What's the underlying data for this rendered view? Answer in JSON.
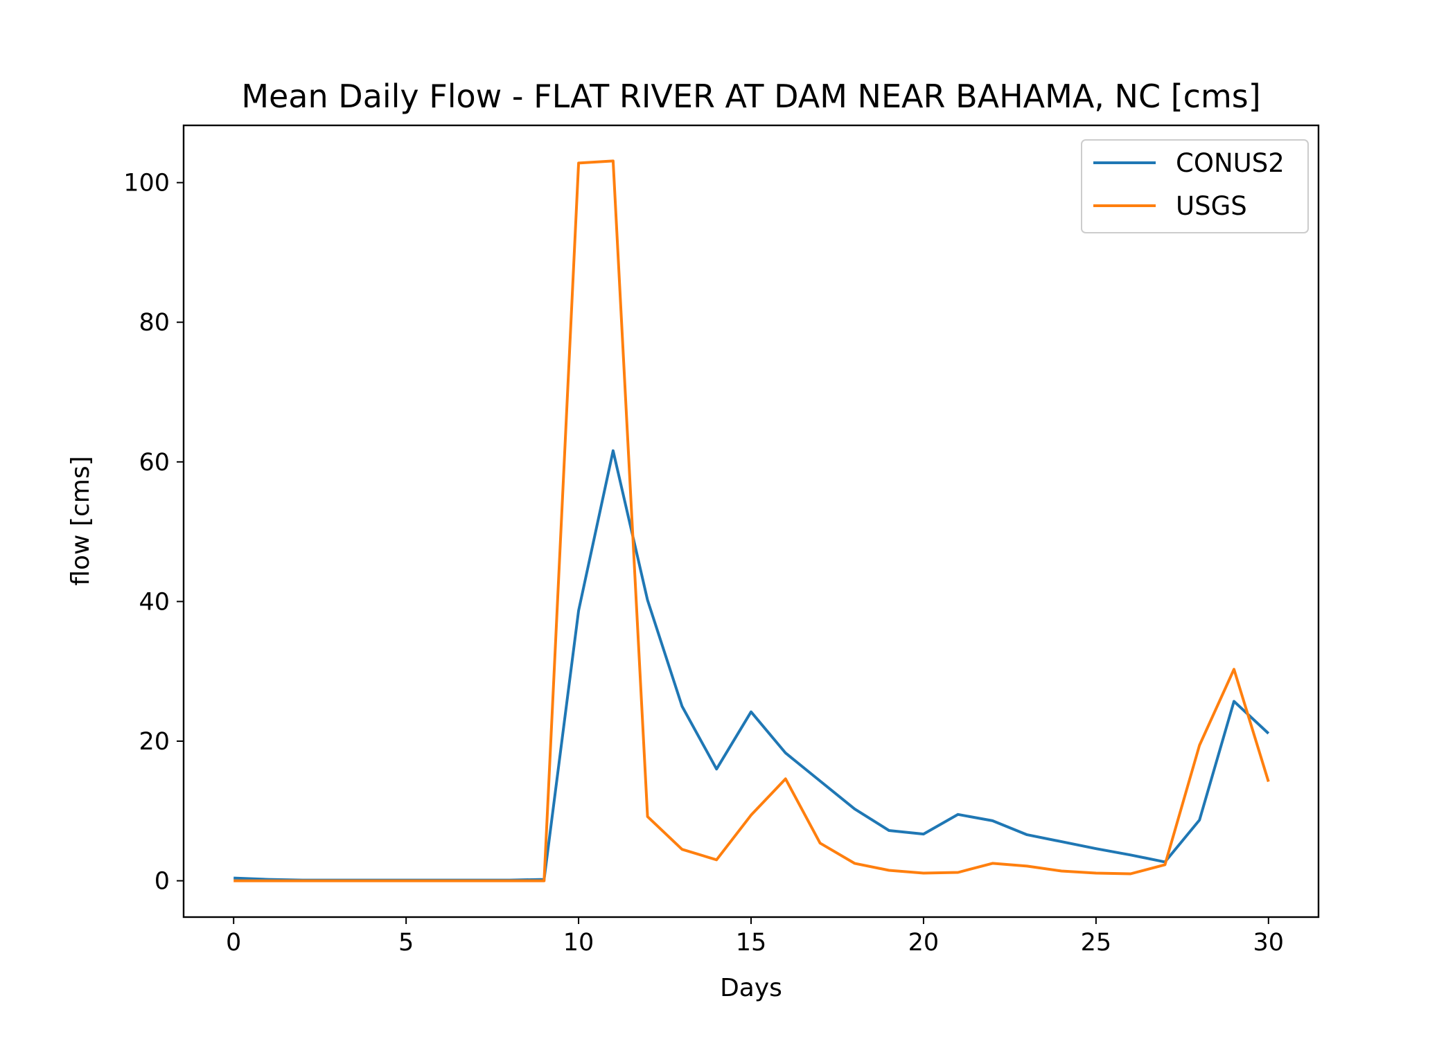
{
  "chart_data": {
    "type": "line",
    "title": "Mean Daily Flow - FLAT RIVER AT DAM NEAR BAHAMA, NC [cms]",
    "xlabel": "Days",
    "ylabel": "flow [cms]",
    "xlim": [
      -1.45,
      31.45
    ],
    "ylim": [
      -5.2,
      108.2
    ],
    "xticks": [
      0,
      5,
      10,
      15,
      20,
      25,
      30
    ],
    "yticks": [
      0,
      20,
      40,
      60,
      80,
      100
    ],
    "grid": false,
    "legend_position": "upper right",
    "x": [
      0,
      1,
      2,
      3,
      4,
      5,
      6,
      7,
      8,
      9,
      10,
      11,
      12,
      13,
      14,
      15,
      16,
      17,
      18,
      19,
      20,
      21,
      22,
      23,
      24,
      25,
      26,
      27,
      28,
      29,
      30
    ],
    "series": [
      {
        "name": "CONUS2",
        "color": "#1f77b4",
        "values": [
          0.4,
          0.2,
          0.1,
          0.1,
          0.1,
          0.1,
          0.1,
          0.1,
          0.1,
          0.2,
          38.7,
          61.6,
          40.2,
          25.0,
          16.0,
          24.2,
          18.3,
          14.3,
          10.3,
          7.2,
          6.7,
          9.5,
          8.6,
          6.6,
          5.6,
          4.6,
          3.7,
          2.7,
          8.7,
          25.7,
          21.1
        ]
      },
      {
        "name": "USGS",
        "color": "#ff7f0e",
        "values": [
          0.0,
          0.0,
          0.0,
          0.0,
          0.0,
          0.0,
          0.0,
          0.0,
          0.0,
          0.0,
          102.8,
          103.1,
          9.2,
          4.5,
          3.0,
          9.4,
          14.6,
          5.4,
          2.5,
          1.5,
          1.1,
          1.2,
          2.5,
          2.1,
          1.4,
          1.1,
          1.0,
          2.3,
          19.4,
          30.3,
          14.2
        ]
      }
    ]
  }
}
